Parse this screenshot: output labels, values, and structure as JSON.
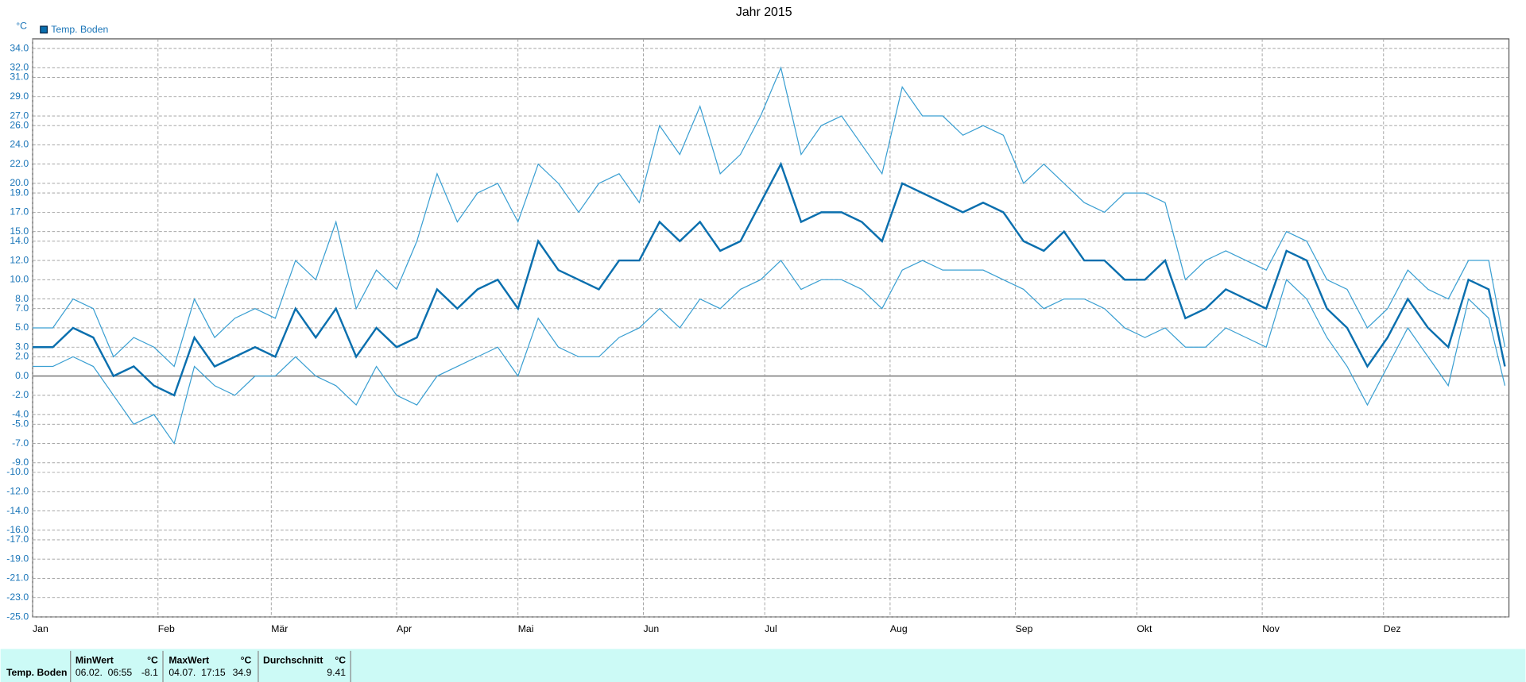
{
  "chart_data": {
    "type": "line",
    "title": "Jahr 2015",
    "y_label": "°C",
    "x": [
      0,
      5,
      10,
      15,
      20,
      25,
      30,
      35,
      40,
      45,
      50,
      55,
      60,
      65,
      70,
      75,
      80,
      85,
      90,
      95,
      100,
      105,
      110,
      115,
      120,
      125,
      130,
      135,
      140,
      145,
      150,
      155,
      160,
      165,
      170,
      175,
      180,
      185,
      190,
      195,
      200,
      205,
      210,
      215,
      220,
      225,
      230,
      235,
      240,
      245,
      250,
      255,
      260,
      265,
      270,
      275,
      280,
      285,
      290,
      295,
      300,
      305,
      310,
      315,
      320,
      325,
      330,
      335,
      340,
      345,
      350,
      355,
      360,
      364
    ],
    "series": [
      {
        "name": "Temp. Boden",
        "color": "#0a6fae",
        "values": [
          3,
          3,
          5,
          4,
          0,
          1,
          -1,
          -2,
          4,
          1,
          2,
          3,
          2,
          7,
          4,
          7,
          2,
          5,
          3,
          4,
          9,
          7,
          9,
          10,
          7,
          14,
          11,
          10,
          9,
          12,
          12,
          16,
          14,
          16,
          13,
          14,
          18,
          22,
          16,
          17,
          17,
          16,
          14,
          20,
          19,
          18,
          17,
          18,
          17,
          14,
          13,
          15,
          12,
          12,
          10,
          10,
          12,
          6,
          7,
          9,
          8,
          7,
          13,
          12,
          7,
          5,
          1,
          4,
          8,
          5,
          3,
          10,
          9,
          1
        ]
      },
      {
        "color": "#3a9fd2",
        "values": [
          5,
          5,
          8,
          7,
          2,
          4,
          3,
          1,
          8,
          4,
          6,
          7,
          6,
          12,
          10,
          16,
          7,
          11,
          9,
          14,
          21,
          16,
          19,
          20,
          16,
          22,
          20,
          17,
          20,
          21,
          18,
          26,
          23,
          28,
          21,
          23,
          27,
          32,
          23,
          26,
          27,
          24,
          21,
          30,
          27,
          27,
          25,
          26,
          25,
          20,
          22,
          20,
          18,
          17,
          19,
          19,
          18,
          10,
          12,
          13,
          12,
          11,
          15,
          14,
          10,
          9,
          5,
          7,
          11,
          9,
          8,
          12,
          12,
          3
        ]
      },
      {
        "color": "#3a9fd2",
        "values": [
          1,
          1,
          2,
          1,
          -2,
          -5,
          -4,
          -7,
          1,
          -1,
          -2,
          0,
          0,
          2,
          0,
          -1,
          -3,
          1,
          -2,
          -3,
          0,
          1,
          2,
          3,
          0,
          6,
          3,
          2,
          2,
          4,
          5,
          7,
          5,
          8,
          7,
          9,
          10,
          12,
          9,
          10,
          10,
          9,
          7,
          11,
          12,
          11,
          11,
          11,
          10,
          9,
          7,
          8,
          8,
          7,
          5,
          4,
          5,
          3,
          3,
          5,
          4,
          3,
          10,
          8,
          4,
          1,
          -3,
          1,
          5,
          2,
          -1,
          8,
          6,
          -1
        ]
      }
    ],
    "xlim": [
      0,
      365
    ],
    "xticks": [
      {
        "value": 0,
        "label": "Jan"
      },
      {
        "value": 31,
        "label": "Feb"
      },
      {
        "value": 59,
        "label": "Mär"
      },
      {
        "value": 90,
        "label": "Apr"
      },
      {
        "value": 120,
        "label": "Mai"
      },
      {
        "value": 151,
        "label": "Jun"
      },
      {
        "value": 181,
        "label": "Jul"
      },
      {
        "value": 212,
        "label": "Aug"
      },
      {
        "value": 243,
        "label": "Sep"
      },
      {
        "value": 273,
        "label": "Okt"
      },
      {
        "value": 304,
        "label": "Nov"
      },
      {
        "value": 334,
        "label": "Dez"
      }
    ],
    "ylim": [
      -25,
      35
    ],
    "yticks": [
      {
        "value": 34,
        "label": "34.0"
      },
      {
        "value": 32,
        "label": "32.0"
      },
      {
        "value": 31,
        "label": "31.0"
      },
      {
        "value": 29,
        "label": "29.0"
      },
      {
        "value": 27,
        "label": "27.0"
      },
      {
        "value": 26,
        "label": "26.0"
      },
      {
        "value": 24,
        "label": "24.0"
      },
      {
        "value": 22,
        "label": "22.0"
      },
      {
        "value": 20,
        "label": "20.0"
      },
      {
        "value": 19,
        "label": "19.0"
      },
      {
        "value": 17,
        "label": "17.0"
      },
      {
        "value": 15,
        "label": "15.0"
      },
      {
        "value": 14,
        "label": "14.0"
      },
      {
        "value": 12,
        "label": "12.0"
      },
      {
        "value": 10,
        "label": "10.0"
      },
      {
        "value": 8,
        "label": "8.0"
      },
      {
        "value": 7,
        "label": "7.0"
      },
      {
        "value": 5,
        "label": "5.0"
      },
      {
        "value": 3,
        "label": "3.0"
      },
      {
        "value": 2,
        "label": "2.0"
      },
      {
        "value": 0,
        "label": "0.0"
      },
      {
        "value": -2,
        "label": "-2.0"
      },
      {
        "value": -4,
        "label": "-4.0"
      },
      {
        "value": -5,
        "label": "-5.0"
      },
      {
        "value": -7,
        "label": "-7.0"
      },
      {
        "value": -9,
        "label": "-9.0"
      },
      {
        "value": -10,
        "label": "-10.0"
      },
      {
        "value": -12,
        "label": "-12.0"
      },
      {
        "value": -14,
        "label": "-14.0"
      },
      {
        "value": -16,
        "label": "-16.0"
      },
      {
        "value": -17,
        "label": "-17.0"
      },
      {
        "value": -19,
        "label": "-19.0"
      },
      {
        "value": -21,
        "label": "-21.0"
      },
      {
        "value": -23,
        "label": "-23.0"
      },
      {
        "value": -25,
        "label": "-25.0"
      }
    ],
    "grid": true,
    "legend": "top-left"
  },
  "table": {
    "header": [
      "MinWert",
      "°C",
      "MaxWert",
      "°C",
      "Durchschnitt",
      "°C"
    ],
    "rows": [
      [
        "Temp. Boden",
        "06.02.  06:55",
        "-8.1",
        "04.07.  17:15",
        "34.9",
        "9.41"
      ]
    ]
  }
}
